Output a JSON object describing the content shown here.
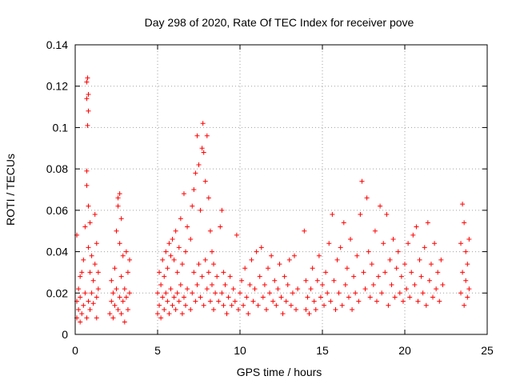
{
  "chart_data": {
    "type": "scatter",
    "title": "Day 298 of 2020, Rate Of TEC Index for receiver pove",
    "xlabel": "GPS time / hours",
    "ylabel": "ROTI / TECUs",
    "xlim": [
      0,
      25
    ],
    "ylim": [
      0,
      0.14
    ],
    "xticks": [
      "0",
      "5",
      "10",
      "15",
      "20",
      "25"
    ],
    "yticks": [
      "0",
      "0.02",
      "0.04",
      "0.06",
      "0.08",
      "0.1",
      "0.12",
      "0.14"
    ],
    "grid": true,
    "marker": "+",
    "color": "#ff0000",
    "series": [
      {
        "points": [
          [
            0.1,
            0.008
          ],
          [
            0.1,
            0.016
          ],
          [
            0.1,
            0.048
          ],
          [
            0.2,
            0.012
          ],
          [
            0.2,
            0.022
          ],
          [
            0.3,
            0.006
          ],
          [
            0.3,
            0.018
          ],
          [
            0.3,
            0.028
          ],
          [
            0.4,
            0.01
          ],
          [
            0.4,
            0.03
          ],
          [
            0.5,
            0.014
          ],
          [
            0.5,
            0.036
          ],
          [
            0.6,
            0.02
          ],
          [
            0.6,
            0.052
          ],
          [
            0.7,
            0.008
          ],
          [
            0.7,
            0.122
          ],
          [
            0.7,
            0.114
          ],
          [
            0.7,
            0.079
          ],
          [
            0.7,
            0.072
          ],
          [
            0.75,
            0.124
          ],
          [
            0.75,
            0.101
          ],
          [
            0.8,
            0.062
          ],
          [
            0.8,
            0.116
          ],
          [
            0.8,
            0.108
          ],
          [
            0.8,
            0.042
          ],
          [
            0.8,
            0.016
          ],
          [
            0.9,
            0.012
          ],
          [
            0.9,
            0.03
          ],
          [
            0.9,
            0.054
          ],
          [
            1.0,
            0.02
          ],
          [
            1.0,
            0.038
          ],
          [
            1.1,
            0.015
          ],
          [
            1.1,
            0.026
          ],
          [
            1.2,
            0.034
          ],
          [
            1.2,
            0.058
          ],
          [
            1.3,
            0.018
          ],
          [
            1.3,
            0.044
          ],
          [
            1.3,
            0.008
          ],
          [
            1.4,
            0.022
          ],
          [
            1.4,
            0.03
          ],
          [
            2.1,
            0.01
          ],
          [
            2.2,
            0.016
          ],
          [
            2.2,
            0.026
          ],
          [
            2.3,
            0.008
          ],
          [
            2.3,
            0.02
          ],
          [
            2.4,
            0.014
          ],
          [
            2.4,
            0.032
          ],
          [
            2.5,
            0.022
          ],
          [
            2.5,
            0.05
          ],
          [
            2.6,
            0.012
          ],
          [
            2.6,
            0.062
          ],
          [
            2.6,
            0.066
          ],
          [
            2.7,
            0.018
          ],
          [
            2.7,
            0.044
          ],
          [
            2.7,
            0.068
          ],
          [
            2.8,
            0.01
          ],
          [
            2.8,
            0.028
          ],
          [
            2.8,
            0.056
          ],
          [
            2.9,
            0.016
          ],
          [
            2.9,
            0.038
          ],
          [
            3.0,
            0.006
          ],
          [
            3.0,
            0.022
          ],
          [
            3.1,
            0.018
          ],
          [
            3.1,
            0.04
          ],
          [
            3.2,
            0.012
          ],
          [
            3.2,
            0.03
          ],
          [
            3.3,
            0.02
          ],
          [
            3.3,
            0.036
          ],
          [
            5.0,
            0.01
          ],
          [
            5.0,
            0.02
          ],
          [
            5.1,
            0.014
          ],
          [
            5.1,
            0.03
          ],
          [
            5.2,
            0.008
          ],
          [
            5.2,
            0.024
          ],
          [
            5.3,
            0.018
          ],
          [
            5.3,
            0.036
          ],
          [
            5.4,
            0.012
          ],
          [
            5.4,
            0.028
          ],
          [
            5.5,
            0.02
          ],
          [
            5.5,
            0.04
          ],
          [
            5.6,
            0.016
          ],
          [
            5.6,
            0.032
          ],
          [
            5.7,
            0.01
          ],
          [
            5.7,
            0.044
          ],
          [
            5.8,
            0.022
          ],
          [
            5.8,
            0.038
          ],
          [
            5.9,
            0.014
          ],
          [
            5.9,
            0.046
          ],
          [
            6.0,
            0.018
          ],
          [
            6.0,
            0.036
          ],
          [
            6.1,
            0.012
          ],
          [
            6.1,
            0.05
          ],
          [
            6.2,
            0.02
          ],
          [
            6.2,
            0.03
          ],
          [
            6.3,
            0.016
          ],
          [
            6.3,
            0.042
          ],
          [
            6.4,
            0.024
          ],
          [
            6.4,
            0.056
          ],
          [
            6.5,
            0.01
          ],
          [
            6.5,
            0.034
          ],
          [
            6.6,
            0.018
          ],
          [
            6.6,
            0.068
          ],
          [
            6.7,
            0.014
          ],
          [
            6.7,
            0.04
          ],
          [
            6.8,
            0.022
          ],
          [
            6.8,
            0.052
          ],
          [
            7.0,
            0.012
          ],
          [
            7.0,
            0.046
          ],
          [
            7.1,
            0.02
          ],
          [
            7.1,
            0.062
          ],
          [
            7.2,
            0.03
          ],
          [
            7.2,
            0.07
          ],
          [
            7.3,
            0.016
          ],
          [
            7.3,
            0.078
          ],
          [
            7.4,
            0.024
          ],
          [
            7.4,
            0.096
          ],
          [
            7.5,
            0.034
          ],
          [
            7.5,
            0.082
          ],
          [
            7.6,
            0.018
          ],
          [
            7.6,
            0.06
          ],
          [
            7.7,
            0.028
          ],
          [
            7.7,
            0.09
          ],
          [
            7.75,
            0.102
          ],
          [
            7.8,
            0.014
          ],
          [
            7.8,
            0.088
          ],
          [
            7.9,
            0.036
          ],
          [
            7.9,
            0.074
          ],
          [
            8.0,
            0.022
          ],
          [
            8.0,
            0.096
          ],
          [
            8.1,
            0.03
          ],
          [
            8.1,
            0.066
          ],
          [
            8.2,
            0.016
          ],
          [
            8.2,
            0.05
          ],
          [
            8.3,
            0.024
          ],
          [
            8.3,
            0.04
          ],
          [
            8.4,
            0.012
          ],
          [
            8.4,
            0.034
          ],
          [
            8.5,
            0.02
          ],
          [
            8.6,
            0.028
          ],
          [
            8.7,
            0.016
          ],
          [
            8.8,
            0.052
          ],
          [
            8.9,
            0.02
          ],
          [
            8.9,
            0.06
          ],
          [
            9.0,
            0.014
          ],
          [
            9.0,
            0.03
          ],
          [
            9.1,
            0.024
          ],
          [
            9.2,
            0.01
          ],
          [
            9.3,
            0.018
          ],
          [
            9.4,
            0.028
          ],
          [
            9.5,
            0.014
          ],
          [
            9.6,
            0.022
          ],
          [
            9.7,
            0.016
          ],
          [
            9.8,
            0.048
          ],
          [
            9.9,
            0.012
          ],
          [
            10.0,
            0.02
          ],
          [
            10.1,
            0.026
          ],
          [
            10.2,
            0.014
          ],
          [
            10.3,
            0.032
          ],
          [
            10.4,
            0.018
          ],
          [
            10.5,
            0.01
          ],
          [
            10.6,
            0.024
          ],
          [
            10.7,
            0.036
          ],
          [
            10.8,
            0.016
          ],
          [
            10.9,
            0.022
          ],
          [
            11.0,
            0.04
          ],
          [
            11.1,
            0.014
          ],
          [
            11.2,
            0.028
          ],
          [
            11.3,
            0.042
          ],
          [
            11.4,
            0.018
          ],
          [
            11.5,
            0.024
          ],
          [
            11.6,
            0.012
          ],
          [
            11.7,
            0.032
          ],
          [
            11.8,
            0.02
          ],
          [
            11.9,
            0.038
          ],
          [
            12.0,
            0.016
          ],
          [
            12.1,
            0.026
          ],
          [
            12.2,
            0.014
          ],
          [
            12.3,
            0.022
          ],
          [
            12.4,
            0.034
          ],
          [
            12.5,
            0.018
          ],
          [
            12.6,
            0.01
          ],
          [
            12.7,
            0.028
          ],
          [
            12.8,
            0.016
          ],
          [
            12.9,
            0.024
          ],
          [
            13.0,
            0.036
          ],
          [
            13.1,
            0.014
          ],
          [
            13.2,
            0.02
          ],
          [
            13.3,
            0.038
          ],
          [
            13.4,
            0.012
          ],
          [
            13.5,
            0.022
          ],
          [
            13.9,
            0.05
          ],
          [
            14.0,
            0.012
          ],
          [
            14.0,
            0.026
          ],
          [
            14.1,
            0.018
          ],
          [
            14.2,
            0.01
          ],
          [
            14.3,
            0.022
          ],
          [
            14.4,
            0.032
          ],
          [
            14.5,
            0.016
          ],
          [
            14.6,
            0.012
          ],
          [
            14.7,
            0.026
          ],
          [
            14.8,
            0.038
          ],
          [
            14.9,
            0.018
          ],
          [
            15.0,
            0.024
          ],
          [
            15.1,
            0.014
          ],
          [
            15.2,
            0.03
          ],
          [
            15.3,
            0.02
          ],
          [
            15.4,
            0.044
          ],
          [
            15.5,
            0.016
          ],
          [
            15.6,
            0.058
          ],
          [
            15.7,
            0.026
          ],
          [
            15.8,
            0.012
          ],
          [
            15.9,
            0.036
          ],
          [
            16.0,
            0.02
          ],
          [
            16.1,
            0.042
          ],
          [
            16.2,
            0.014
          ],
          [
            16.3,
            0.054
          ],
          [
            16.4,
            0.024
          ],
          [
            16.5,
            0.032
          ],
          [
            16.6,
            0.018
          ],
          [
            16.7,
            0.046
          ],
          [
            16.8,
            0.012
          ],
          [
            16.9,
            0.028
          ],
          [
            17.0,
            0.02
          ],
          [
            17.1,
            0.038
          ],
          [
            17.2,
            0.016
          ],
          [
            17.3,
            0.058
          ],
          [
            17.4,
            0.074
          ],
          [
            17.5,
            0.03
          ],
          [
            17.6,
            0.022
          ],
          [
            17.7,
            0.066
          ],
          [
            17.8,
            0.04
          ],
          [
            17.9,
            0.018
          ],
          [
            18.0,
            0.034
          ],
          [
            18.1,
            0.024
          ],
          [
            18.2,
            0.05
          ],
          [
            18.3,
            0.016
          ],
          [
            18.4,
            0.028
          ],
          [
            18.5,
            0.062
          ],
          [
            18.6,
            0.02
          ],
          [
            18.7,
            0.044
          ],
          [
            18.8,
            0.03
          ],
          [
            18.9,
            0.058
          ],
          [
            19.0,
            0.014
          ],
          [
            19.1,
            0.036
          ],
          [
            19.2,
            0.024
          ],
          [
            19.3,
            0.046
          ],
          [
            19.4,
            0.018
          ],
          [
            19.5,
            0.032
          ],
          [
            19.6,
            0.04
          ],
          [
            19.7,
            0.02
          ],
          [
            19.8,
            0.028
          ],
          [
            19.9,
            0.016
          ],
          [
            20.0,
            0.034
          ],
          [
            20.1,
            0.022
          ],
          [
            20.2,
            0.044
          ],
          [
            20.3,
            0.018
          ],
          [
            20.4,
            0.03
          ],
          [
            20.5,
            0.048
          ],
          [
            20.6,
            0.024
          ],
          [
            20.7,
            0.052
          ],
          [
            20.8,
            0.016
          ],
          [
            20.9,
            0.036
          ],
          [
            21.0,
            0.028
          ],
          [
            21.1,
            0.02
          ],
          [
            21.2,
            0.042
          ],
          [
            21.3,
            0.014
          ],
          [
            21.4,
            0.054
          ],
          [
            21.5,
            0.026
          ],
          [
            21.6,
            0.034
          ],
          [
            21.7,
            0.018
          ],
          [
            21.8,
            0.044
          ],
          [
            21.9,
            0.022
          ],
          [
            22.0,
            0.03
          ],
          [
            22.1,
            0.016
          ],
          [
            22.2,
            0.036
          ],
          [
            22.3,
            0.024
          ],
          [
            23.4,
            0.02
          ],
          [
            23.4,
            0.044
          ],
          [
            23.5,
            0.063
          ],
          [
            23.5,
            0.03
          ],
          [
            23.6,
            0.014
          ],
          [
            23.6,
            0.054
          ],
          [
            23.7,
            0.026
          ],
          [
            23.7,
            0.04
          ],
          [
            23.8,
            0.018
          ],
          [
            23.8,
            0.034
          ],
          [
            23.9,
            0.022
          ],
          [
            23.9,
            0.046
          ]
        ]
      }
    ]
  }
}
